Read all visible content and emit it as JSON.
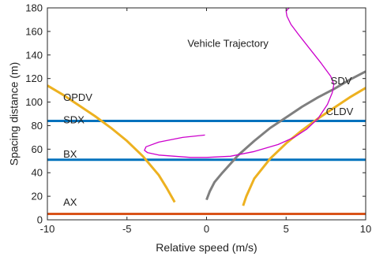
{
  "chart_data": {
    "type": "line",
    "xlabel": "Relative speed (m/s)",
    "ylabel": "Spacing distance (m)",
    "xlim": [
      -10,
      10
    ],
    "ylim": [
      0,
      180
    ],
    "xticks": [
      -10,
      -5,
      0,
      5,
      10
    ],
    "yticks": [
      0,
      20,
      40,
      60,
      80,
      100,
      120,
      140,
      160,
      180
    ],
    "grid": false,
    "legend": "none",
    "series": [
      {
        "name": "AX",
        "color": "#d95319",
        "x": [
          -10,
          10
        ],
        "y": [
          5,
          5
        ]
      },
      {
        "name": "BX",
        "color": "#0072bd",
        "x": [
          -10,
          10
        ],
        "y": [
          51,
          51
        ]
      },
      {
        "name": "SDX",
        "color": "#0072bd",
        "x": [
          -10,
          10
        ],
        "y": [
          84,
          84
        ]
      },
      {
        "name": "OPDV",
        "color": "#edb120",
        "x": [
          -10,
          -9,
          -8,
          -7,
          -6,
          -5,
          -4,
          -3,
          -2.5,
          -2
        ],
        "y": [
          114,
          106,
          97,
          88,
          78,
          67,
          54,
          38,
          27,
          15
        ]
      },
      {
        "name": "CLDV",
        "color": "#edb120",
        "x": [
          2.3,
          2.5,
          3,
          4,
          5,
          6,
          7,
          8,
          9,
          10
        ],
        "y": [
          12,
          20,
          35,
          52,
          65,
          76,
          86,
          95,
          104,
          112
        ]
      },
      {
        "name": "SDV",
        "color": "#7f7f7f",
        "x": [
          0,
          0.2,
          0.5,
          1,
          2,
          3,
          4,
          5,
          6,
          7,
          8,
          9,
          10
        ],
        "y": [
          17,
          24,
          32,
          40,
          55,
          67,
          78,
          87,
          96,
          104,
          111,
          119,
          126
        ]
      },
      {
        "name": "Vehicle Trajectory",
        "color": "#cc00cc",
        "x": [
          -0.1,
          -1.5,
          -3,
          -3.8,
          -3.9,
          -3.7,
          -3,
          -1,
          0,
          1.5,
          3,
          4.5,
          5.5,
          6.3,
          7,
          7.6,
          7.9,
          8.0,
          7.8,
          7.2,
          6.5,
          5.8,
          5.3,
          5.05,
          5.0,
          5.1,
          5.2
        ],
        "y": [
          72,
          70,
          66,
          62,
          59,
          57,
          55,
          53,
          53,
          54,
          58,
          64,
          70,
          77,
          86,
          98,
          108,
          115,
          122,
          133,
          145,
          157,
          166,
          173,
          177,
          179,
          180
        ]
      }
    ],
    "annotations": [
      {
        "id": "trajectory",
        "text": "Vehicle Trajectory",
        "x": -1.2,
        "y": 147
      },
      {
        "id": "sdv",
        "text": "SDV",
        "x": 7.8,
        "y": 115
      },
      {
        "id": "opdv",
        "text": "OPDV",
        "x": -9.0,
        "y": 101
      },
      {
        "id": "sdx",
        "text": "SDX",
        "x": -9.0,
        "y": 82
      },
      {
        "id": "cldv",
        "text": "CLDV",
        "x": 7.5,
        "y": 89
      },
      {
        "id": "bx",
        "text": "BX",
        "x": -9.0,
        "y": 53
      },
      {
        "id": "ax",
        "text": "AX",
        "x": -9.0,
        "y": 12
      }
    ]
  }
}
